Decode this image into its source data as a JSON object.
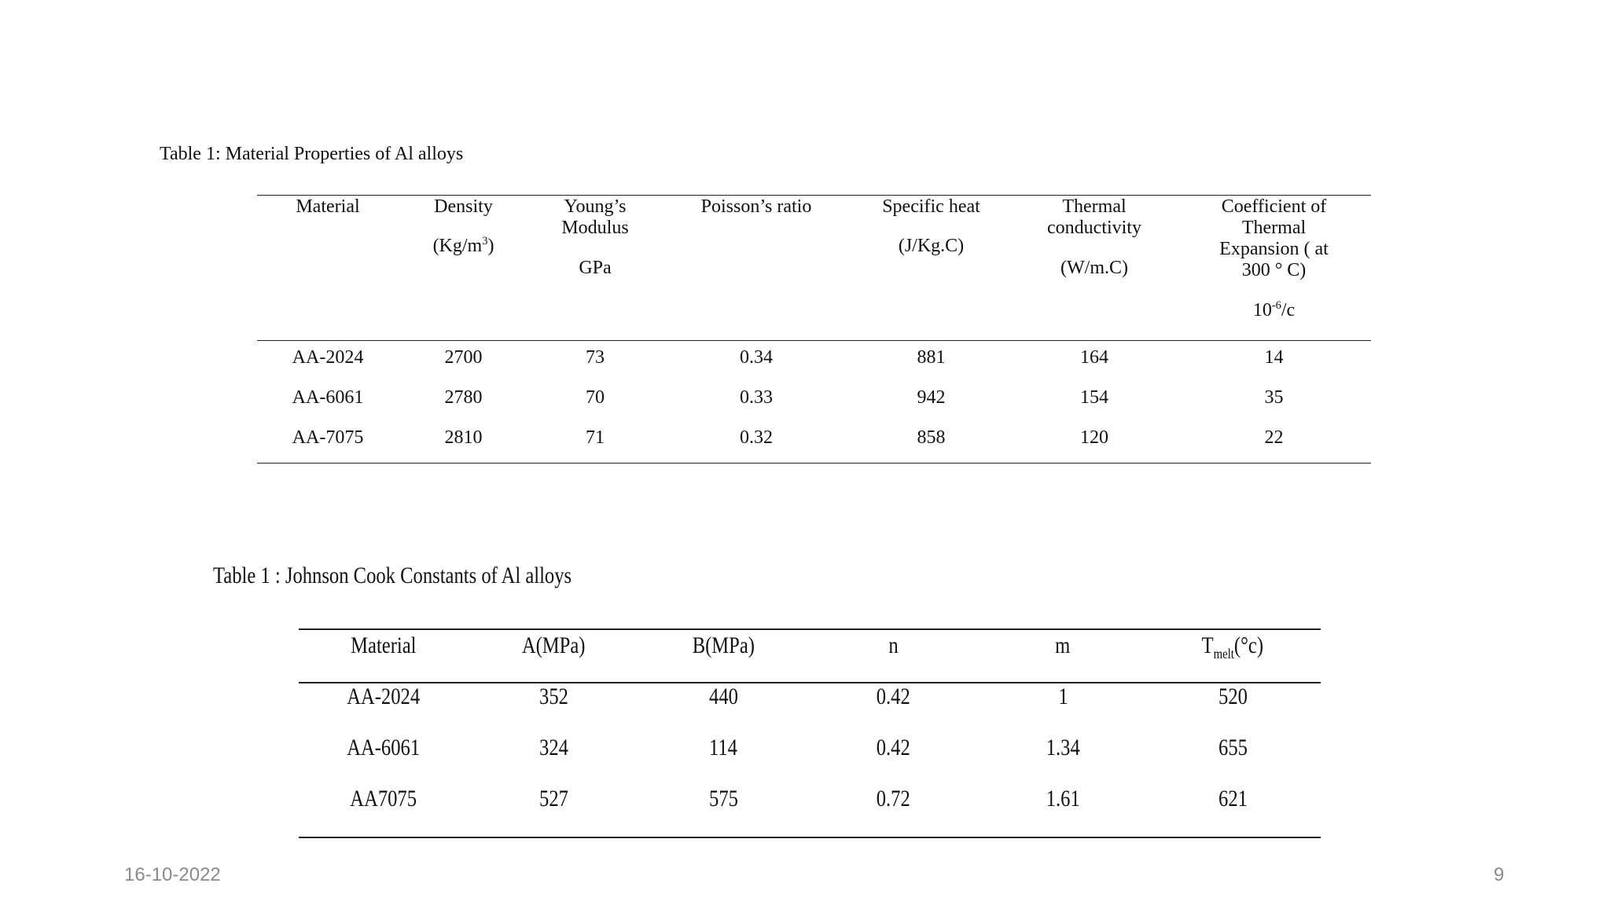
{
  "table1": {
    "caption": "Table 1: Material Properties of Al alloys",
    "headers": {
      "material": "Material",
      "density_line1": "Density",
      "density_unit_base": "(Kg/m",
      "density_unit_sup": "3",
      "density_unit_close": ")",
      "youngs_line1": "Young’s",
      "youngs_line2": "Modulus",
      "youngs_unit": "GPa",
      "poisson": "Poisson’s ratio",
      "specific_heat": "Specific heat",
      "specific_heat_unit": "(J/Kg.C)",
      "thermal_line1": "Thermal",
      "thermal_line2": "conductivity",
      "thermal_unit": "(W/m.C)",
      "cte_line1": "Coefficient of",
      "cte_line2": "Thermal",
      "cte_line3": "Expansion ( at",
      "cte_line4": "300 ° C)",
      "cte_unit_base": "10",
      "cte_unit_sup": "-6",
      "cte_unit_rest": "/c"
    },
    "rows": [
      [
        "AA-2024",
        "2700",
        "73",
        "0.34",
        "881",
        "164",
        "14"
      ],
      [
        "AA-6061",
        "2780",
        "70",
        "0.33",
        "942",
        "154",
        "35"
      ],
      [
        "AA-7075",
        "2810",
        "71",
        "0.32",
        "858",
        "120",
        "22"
      ]
    ]
  },
  "table2": {
    "caption": "Table 1 : Johnson Cook Constants of Al alloys",
    "headers": {
      "material": "Material",
      "a": "A(MPa)",
      "b": "B(MPa)",
      "n": "n",
      "m": "m",
      "tmelt_base": "T",
      "tmelt_sub": "melt",
      "tmelt_rest": "(°c)"
    },
    "rows": [
      [
        "AA-2024",
        "352",
        "440",
        "0.42",
        "1",
        "520"
      ],
      [
        "AA-6061",
        "324",
        "114",
        "0.42",
        "1.34",
        "655"
      ],
      [
        "AA7075",
        "527",
        "575",
        "0.72",
        "1.61",
        "621"
      ]
    ]
  },
  "footer": {
    "date": "16-10-2022",
    "page_number": "9"
  }
}
